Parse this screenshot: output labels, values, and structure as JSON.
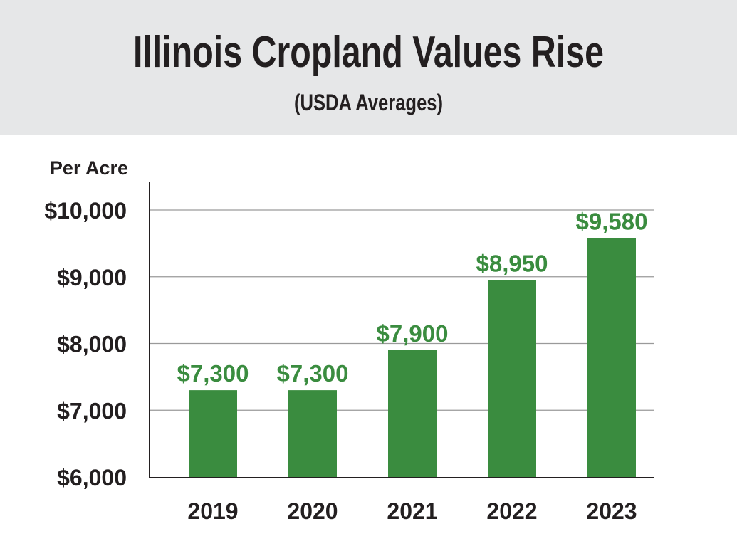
{
  "chart_data": {
    "type": "bar",
    "title": "Illinois Cropland Values Rise",
    "subtitle": "(USDA Averages)",
    "ylabel": "Per Acre",
    "xlabel": "",
    "categories": [
      "2019",
      "2020",
      "2021",
      "2022",
      "2023"
    ],
    "values": [
      7300,
      7300,
      7900,
      8950,
      9580
    ],
    "data_labels": [
      "$7,300",
      "$7,300",
      "$7,900",
      "$8,950",
      "$9,580"
    ],
    "ylim": [
      6000,
      10000
    ],
    "yticks": [
      6000,
      7000,
      8000,
      9000,
      10000
    ],
    "ytick_labels": [
      "$6,000",
      "$7,000",
      "$8,000",
      "$9,000",
      "$10,000"
    ],
    "grid": true,
    "bar_color": "#3a8c3f",
    "header_color": "#e6e7e8"
  }
}
